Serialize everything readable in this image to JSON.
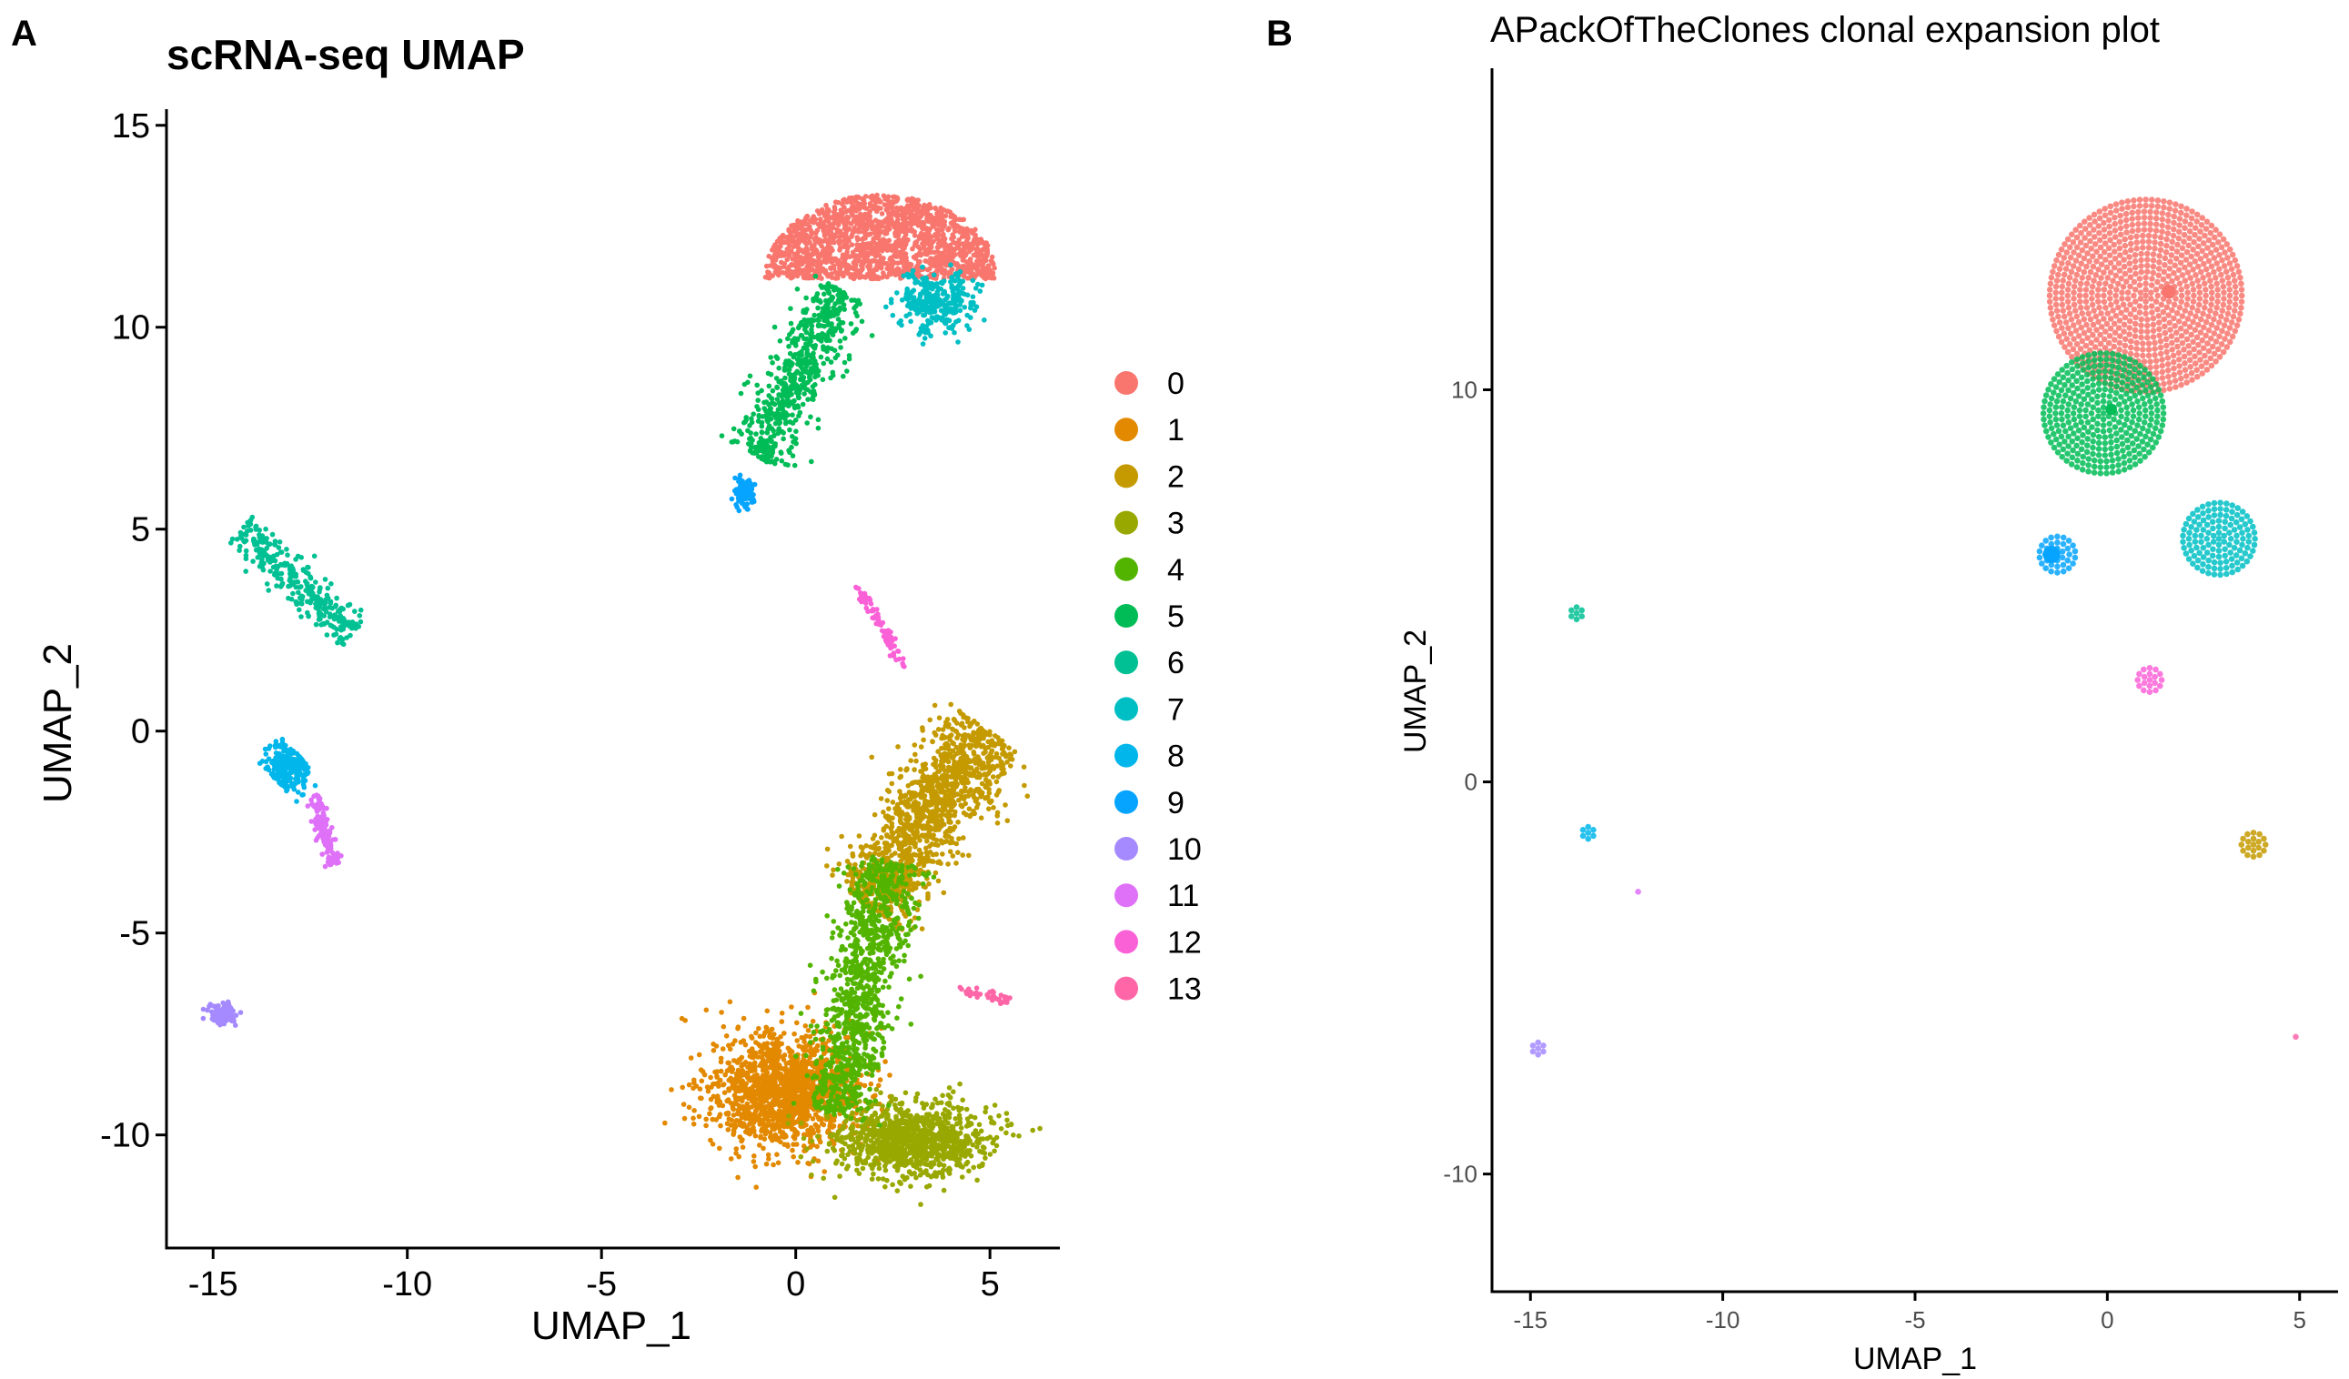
{
  "panels": {
    "a_label": "A",
    "b_label": "B"
  },
  "chart_data": [
    {
      "type": "scatter",
      "title": "scRNA-seq UMAP",
      "xlabel": "UMAP_1",
      "ylabel": "UMAP_2",
      "xlim": [
        -16.2,
        6.8
      ],
      "ylim": [
        -12.8,
        15.4
      ],
      "xticks": [
        -15,
        -10,
        -5,
        0,
        5
      ],
      "yticks": [
        -10,
        -5,
        0,
        5,
        10,
        15
      ],
      "grid": false,
      "legend_position": "right",
      "legend_title": "",
      "legend_entries": [
        "0",
        "1",
        "2",
        "3",
        "4",
        "5",
        "6",
        "7",
        "8",
        "9",
        "10",
        "11",
        "12",
        "13"
      ],
      "colors": [
        "#F8766D",
        "#E38900",
        "#C49A00",
        "#99A800",
        "#53B400",
        "#00BC56",
        "#00C094",
        "#00BFC4",
        "#00B6EB",
        "#06A4FF",
        "#A58AFF",
        "#DF70F8",
        "#FB61D7",
        "#FF66A8"
      ],
      "clusters": [
        {
          "name": "0",
          "shape": "dome",
          "points": 1600,
          "center": [
            2.2,
            11.8
          ],
          "spread": [
            3.0,
            1.6
          ]
        },
        {
          "name": "1",
          "shape": "blob",
          "points": 1500,
          "center": [
            -0.3,
            -8.9
          ],
          "spread": [
            2.1,
            1.5
          ]
        },
        {
          "name": "2",
          "shape": "band",
          "points": 1300,
          "from": [
            1.8,
            -4.3
          ],
          "to": [
            5.0,
            0.0
          ],
          "width": 1.6
        },
        {
          "name": "3",
          "shape": "blob",
          "points": 1000,
          "center": [
            3.0,
            -10.1
          ],
          "spread": [
            2.2,
            1.0
          ]
        },
        {
          "name": "4",
          "shape": "band",
          "points": 1000,
          "from": [
            1.0,
            -9.5
          ],
          "to": [
            2.4,
            -3.2
          ],
          "width": 1.3
        },
        {
          "name": "5",
          "shape": "band",
          "points": 600,
          "from": [
            -1.0,
            6.8
          ],
          "to": [
            1.2,
            10.9
          ],
          "width": 1.1
        },
        {
          "name": "6",
          "shape": "band",
          "points": 300,
          "from": [
            -14.3,
            5.0
          ],
          "to": [
            -11.4,
            2.4
          ],
          "width": 0.7
        },
        {
          "name": "7",
          "shape": "blob",
          "points": 300,
          "center": [
            3.6,
            10.6
          ],
          "spread": [
            1.1,
            0.8
          ]
        },
        {
          "name": "8",
          "shape": "band",
          "points": 250,
          "from": [
            -13.4,
            -1.2
          ],
          "to": [
            -12.8,
            -0.6
          ],
          "width": 0.8
        },
        {
          "name": "9",
          "shape": "blob",
          "points": 120,
          "center": [
            -1.3,
            5.9
          ],
          "spread": [
            0.3,
            0.4
          ]
        },
        {
          "name": "10",
          "shape": "blob",
          "points": 90,
          "center": [
            -14.7,
            -7.0
          ],
          "spread": [
            0.4,
            0.3
          ]
        },
        {
          "name": "11",
          "shape": "band",
          "points": 150,
          "from": [
            -12.4,
            -1.6
          ],
          "to": [
            -11.9,
            -3.3
          ],
          "width": 0.3
        },
        {
          "name": "12",
          "shape": "band",
          "points": 80,
          "from": [
            1.6,
            3.6
          ],
          "to": [
            2.8,
            1.6
          ],
          "width": 0.2
        },
        {
          "name": "13",
          "shape": "band",
          "points": 40,
          "from": [
            4.2,
            -6.4
          ],
          "to": [
            5.6,
            -6.7
          ],
          "width": 0.2
        }
      ]
    },
    {
      "type": "scatter",
      "title": "APackOfTheClones clonal expansion plot",
      "xlabel": "UMAP_1",
      "ylabel": "UMAP_2",
      "xlim": [
        -16.0,
        6.0
      ],
      "ylim": [
        -13.0,
        18.2
      ],
      "xticks": [
        -15,
        -10,
        -5,
        0,
        5
      ],
      "yticks": [
        -10,
        0,
        10
      ],
      "grid": false,
      "colors": [
        "#F8766D",
        "#E38900",
        "#C49A00",
        "#99A800",
        "#53B400",
        "#00BC56",
        "#00C094",
        "#00BFC4",
        "#00B6EB",
        "#06A4FF",
        "#A58AFF",
        "#DF70F8",
        "#FB61D7",
        "#FF66A8"
      ],
      "clone_clusters": [
        {
          "name": "0",
          "center": [
            1.0,
            12.4
          ],
          "radius": 2.6,
          "large_clones": [
            {
              "center": [
                1.6,
                12.5
              ],
              "radius": 0.3
            }
          ]
        },
        {
          "name": "5",
          "center": [
            -0.1,
            9.4
          ],
          "radius": 1.7,
          "large_clones": [
            {
              "center": [
                0.1,
                9.5
              ],
              "radius": 0.25
            }
          ]
        },
        {
          "name": "7",
          "center": [
            2.9,
            6.2
          ],
          "radius": 1.0,
          "large_clones": []
        },
        {
          "name": "9",
          "center": [
            -1.3,
            5.8
          ],
          "radius": 0.5,
          "large_clones": [
            {
              "center": [
                -1.45,
                5.8
              ],
              "radius": 0.38
            }
          ]
        },
        {
          "name": "6",
          "center": [
            -13.8,
            4.3
          ],
          "radius": 0.25,
          "large_clones": []
        },
        {
          "name": "12",
          "center": [
            1.1,
            2.6
          ],
          "radius": 0.32,
          "large_clones": []
        },
        {
          "name": "8",
          "center": [
            -13.5,
            -1.3
          ],
          "radius": 0.3,
          "large_clones": []
        },
        {
          "name": "2",
          "center": [
            3.8,
            -1.6
          ],
          "radius": 0.32,
          "large_clones": []
        },
        {
          "name": "11",
          "center": [
            -12.2,
            -2.8
          ],
          "radius": 0.12,
          "large_clones": []
        },
        {
          "name": "10",
          "center": [
            -14.8,
            -6.8
          ],
          "radius": 0.22,
          "large_clones": []
        },
        {
          "name": "13",
          "center": [
            4.9,
            -6.5
          ],
          "radius": 0.08,
          "large_clones": []
        }
      ]
    }
  ]
}
